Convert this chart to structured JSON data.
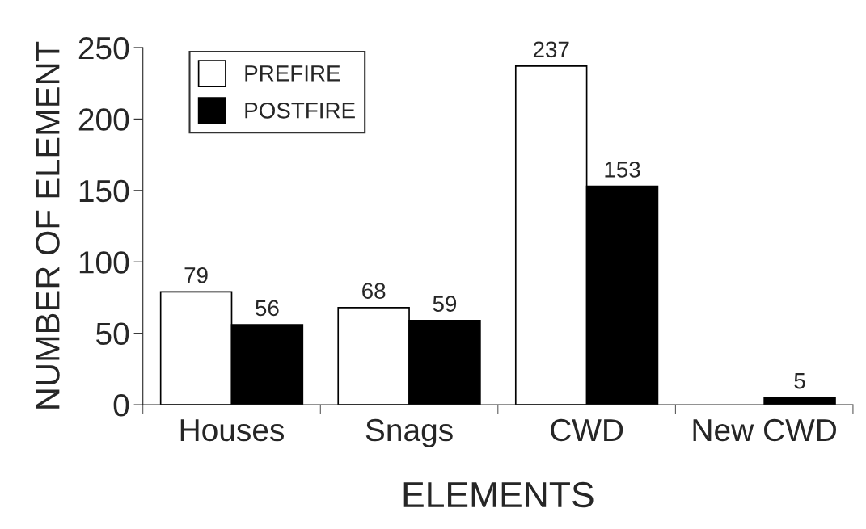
{
  "chart_data": {
    "type": "bar",
    "xlabel": "ELEMENTS",
    "ylabel": "NUMBER OF ELEMENT",
    "categories": [
      "Houses",
      "Snags",
      "CWD",
      "New CWD"
    ],
    "series": [
      {
        "name": "PREFIRE",
        "color": "#ffffff",
        "values": [
          79,
          68,
          237,
          null
        ],
        "value_labels": [
          "79",
          "68",
          "237",
          null
        ]
      },
      {
        "name": "POSTFIRE",
        "color": "#000000",
        "values": [
          56,
          59,
          153,
          5
        ],
        "value_labels": [
          "56",
          "59",
          "153",
          "5"
        ]
      }
    ],
    "ylim": [
      0,
      250
    ],
    "yticks": [
      0,
      50,
      100,
      150,
      200,
      250
    ],
    "grid": false,
    "legend": "top left"
  }
}
